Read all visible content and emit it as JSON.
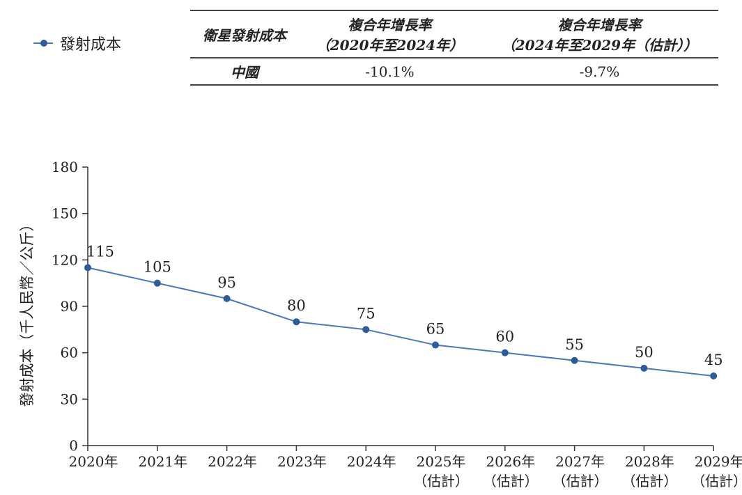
{
  "legend": {
    "series_name": "發射成本"
  },
  "cagr_table": {
    "headers": {
      "col1": "衛星發射成本",
      "col2_line1": "複合年增長率",
      "col2_line2": "（2020年至2024年）",
      "col3_line1": "複合年增長率",
      "col3_line2": "（2024年至2029年（估計））"
    },
    "rows": [
      {
        "region": "中國",
        "cagr_2020_2024": "-10.1%",
        "cagr_2024_2029": "-9.7%"
      }
    ]
  },
  "chart_data": {
    "type": "line",
    "title": "",
    "xlabel": "",
    "ylabel": "發射成本（千人民幣／公斤）",
    "ylim": [
      0,
      180
    ],
    "yticks": [
      0,
      30,
      60,
      90,
      120,
      150,
      180
    ],
    "grid": false,
    "legend_position": "top-left",
    "categories": [
      [
        "2020年"
      ],
      [
        "2021年"
      ],
      [
        "2022年"
      ],
      [
        "2023年"
      ],
      [
        "2024年"
      ],
      [
        "2025年",
        "（估計）"
      ],
      [
        "2026年",
        "（估計）"
      ],
      [
        "2027年",
        "（估計）"
      ],
      [
        "2028年",
        "（估計）"
      ],
      [
        "2029年",
        "（估計）"
      ]
    ],
    "series": [
      {
        "name": "發射成本",
        "values": [
          115,
          105,
          95,
          80,
          75,
          65,
          60,
          55,
          50,
          45
        ],
        "color": "#4a78b8"
      }
    ]
  }
}
